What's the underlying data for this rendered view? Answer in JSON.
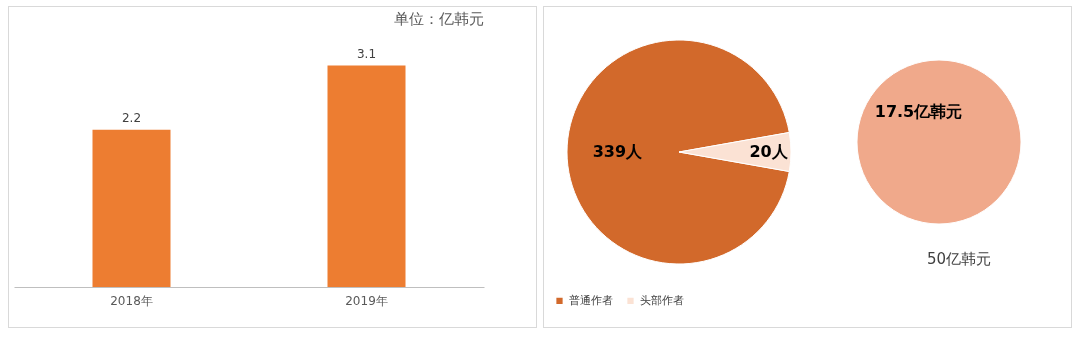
{
  "chart_data": [
    {
      "type": "bar",
      "categories": [
        "2018年",
        "2019年"
      ],
      "values": [
        2.2,
        3.1
      ],
      "color": "#ed7d31",
      "data_labels": true,
      "grid": false,
      "annotations": [
        "单位：亿韩元"
      ]
    },
    {
      "type": "pie",
      "categories": [
        "普通作者",
        "头部作者"
      ],
      "values": [
        339,
        20
      ],
      "colors": [
        "#d2692b",
        "#fbe2d4"
      ],
      "value_labels": [
        "339人",
        "20人"
      ],
      "legend": "bottom"
    },
    {
      "type": "pie",
      "categories": [
        null
      ],
      "values": [
        17.5
      ],
      "colors": [
        "#f0a98b"
      ],
      "value_labels": [
        "17.5亿韩元"
      ],
      "annotations": [
        "50亿韩元"
      ]
    }
  ]
}
